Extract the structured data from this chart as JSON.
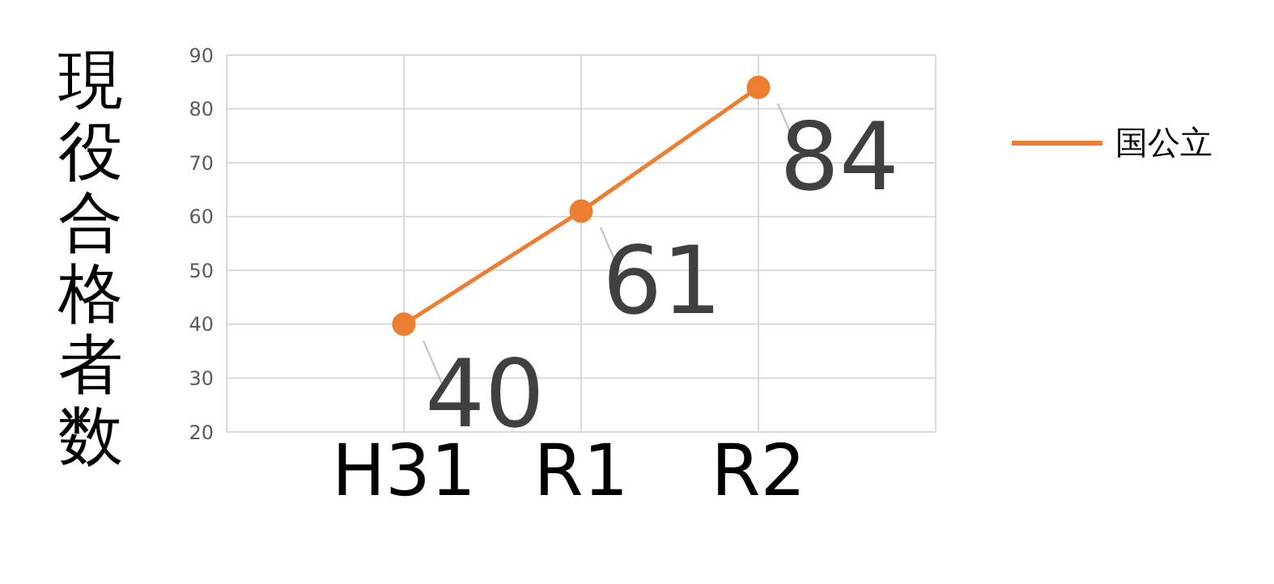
{
  "chart_data": {
    "type": "line",
    "ylabel": "現役合格者数",
    "categories": [
      "H31",
      "R1",
      "R2"
    ],
    "series": [
      {
        "name": "国公立",
        "color": "#ed7d31",
        "values": [
          40,
          61,
          84
        ]
      }
    ],
    "ylim": [
      20,
      90
    ],
    "yticks": [
      20,
      30,
      40,
      50,
      60,
      70,
      80,
      90
    ],
    "grid": true,
    "legend": "right",
    "marker": "circle",
    "line_style": "solid",
    "data_labels": true
  }
}
